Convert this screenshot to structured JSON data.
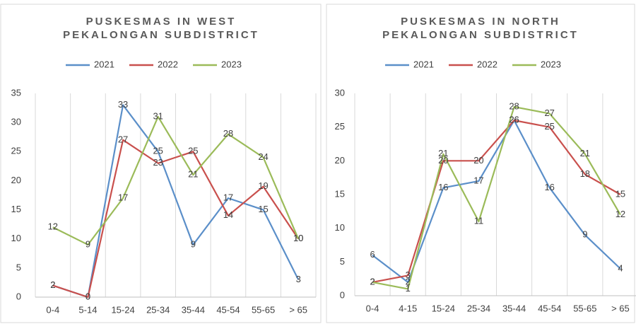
{
  "chart_data": [
    {
      "type": "line",
      "title": [
        "PUSKESMAS IN WEST",
        "PEKALONGAN SUBDISTRICT"
      ],
      "categories": [
        "0-4",
        "5-14",
        "15-24",
        "25-34",
        "35-44",
        "45-54",
        "55-65",
        "> 65"
      ],
      "series": [
        {
          "name": "2021",
          "color": "#5b8fc9",
          "values": [
            2,
            0,
            33,
            25,
            9,
            17,
            15,
            3
          ]
        },
        {
          "name": "2022",
          "color": "#c9504d",
          "values": [
            2,
            0,
            27,
            23,
            25,
            14,
            19,
            10
          ]
        },
        {
          "name": "2023",
          "color": "#9bbb59",
          "values": [
            12,
            9,
            17,
            31,
            21,
            28,
            24,
            10
          ]
        }
      ],
      "ylim": [
        0,
        35
      ],
      "yticks": [
        0,
        5,
        10,
        15,
        20,
        25,
        30,
        35
      ],
      "legend": "top"
    },
    {
      "type": "line",
      "title": [
        "PUSKESMAS IN NORTH",
        "PEKALONGAN SUBDISTRICT"
      ],
      "categories": [
        "0-4",
        "4-15",
        "15-24",
        "25-34",
        "35-44",
        "45-54",
        "55-65",
        "> 65"
      ],
      "series": [
        {
          "name": "2021",
          "color": "#5b8fc9",
          "values": [
            6,
            2,
            16,
            17,
            26,
            16,
            9,
            4
          ]
        },
        {
          "name": "2022",
          "color": "#c9504d",
          "values": [
            2,
            3,
            20,
            20,
            26,
            25,
            18,
            15
          ]
        },
        {
          "name": "2023",
          "color": "#9bbb59",
          "values": [
            2,
            1,
            21,
            11,
            28,
            27,
            21,
            12
          ]
        }
      ],
      "ylim": [
        0,
        30
      ],
      "yticks": [
        0,
        5,
        10,
        15,
        20,
        25,
        30
      ],
      "legend": "top"
    }
  ]
}
